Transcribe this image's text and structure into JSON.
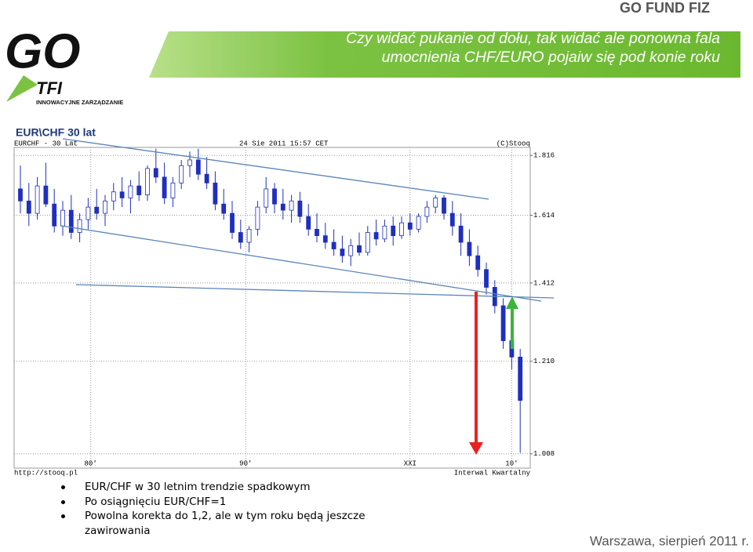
{
  "header": {
    "brand": "GO FUND FIZ",
    "title_line1": "Czy widać pukanie od dołu, tak widać ale ponowna fala",
    "title_line2": "umocnienia CHF/EURO pojaiw się pod konie roku",
    "logo": "GO",
    "logo_sub": "TFI",
    "logo_tagline": "INNOWACYJNE ZARZĄDZANIE"
  },
  "section_label": "EUR\\CHF 30 lat",
  "chart_data": {
    "type": "candlestick",
    "symbol": "EURCHF - 30 Lat",
    "timestamp": "24 Sie 2011 15:57 CET",
    "copyright": "(C)Stooq",
    "source": "http://stooq.pl",
    "interval": "Interwal Kwartalny",
    "log_scale": true,
    "grid": true,
    "up_color": "#ffffff",
    "down_color": "#1f2fbf",
    "open": [
      1.7,
      1.66,
      1.62,
      1.71,
      1.65,
      1.58,
      1.63,
      1.56,
      1.6,
      1.64,
      1.62,
      1.66,
      1.69,
      1.67,
      1.71,
      1.68,
      1.77,
      1.74,
      1.67,
      1.72,
      1.78,
      1.8,
      1.75,
      1.72,
      1.65,
      1.62,
      1.56,
      1.53,
      1.57,
      1.64,
      1.7,
      1.65,
      1.63,
      1.66,
      1.61,
      1.57,
      1.55,
      1.53,
      1.51,
      1.49,
      1.52,
      1.5,
      1.56,
      1.54,
      1.58,
      1.55,
      1.59,
      1.57,
      1.61,
      1.64,
      1.67,
      1.62,
      1.58,
      1.53,
      1.49,
      1.45,
      1.4,
      1.35,
      1.26,
      1.22
    ],
    "high": [
      1.78,
      1.72,
      1.74,
      1.79,
      1.7,
      1.66,
      1.68,
      1.62,
      1.67,
      1.7,
      1.68,
      1.72,
      1.74,
      1.73,
      1.76,
      1.78,
      1.84,
      1.79,
      1.74,
      1.8,
      1.83,
      1.84,
      1.81,
      1.76,
      1.7,
      1.66,
      1.6,
      1.58,
      1.66,
      1.74,
      1.72,
      1.7,
      1.68,
      1.69,
      1.65,
      1.62,
      1.59,
      1.57,
      1.55,
      1.54,
      1.56,
      1.58,
      1.6,
      1.6,
      1.61,
      1.61,
      1.62,
      1.62,
      1.66,
      1.68,
      1.68,
      1.66,
      1.62,
      1.57,
      1.52,
      1.47,
      1.42,
      1.37,
      1.33,
      1.24
    ],
    "low": [
      1.62,
      1.58,
      1.6,
      1.64,
      1.56,
      1.55,
      1.54,
      1.53,
      1.57,
      1.6,
      1.58,
      1.63,
      1.64,
      1.62,
      1.66,
      1.66,
      1.72,
      1.65,
      1.64,
      1.7,
      1.74,
      1.73,
      1.7,
      1.63,
      1.6,
      1.54,
      1.51,
      1.5,
      1.55,
      1.62,
      1.62,
      1.6,
      1.59,
      1.59,
      1.55,
      1.53,
      1.51,
      1.49,
      1.47,
      1.46,
      1.49,
      1.49,
      1.52,
      1.53,
      1.52,
      1.54,
      1.55,
      1.56,
      1.59,
      1.62,
      1.6,
      1.55,
      1.49,
      1.46,
      1.43,
      1.38,
      1.33,
      1.24,
      1.19,
      1.01
    ],
    "close": [
      1.66,
      1.62,
      1.71,
      1.65,
      1.58,
      1.63,
      1.56,
      1.6,
      1.64,
      1.62,
      1.66,
      1.69,
      1.67,
      1.71,
      1.68,
      1.77,
      1.74,
      1.67,
      1.72,
      1.78,
      1.8,
      1.75,
      1.72,
      1.65,
      1.62,
      1.56,
      1.53,
      1.57,
      1.64,
      1.7,
      1.65,
      1.63,
      1.66,
      1.61,
      1.57,
      1.55,
      1.53,
      1.51,
      1.49,
      1.52,
      1.5,
      1.56,
      1.54,
      1.58,
      1.55,
      1.59,
      1.57,
      1.61,
      1.64,
      1.67,
      1.62,
      1.58,
      1.53,
      1.49,
      1.45,
      1.4,
      1.35,
      1.26,
      1.22,
      1.12
    ],
    "xticks": [
      {
        "value": 8.3,
        "label": "80'"
      },
      {
        "value": 26.6,
        "label": "90'"
      },
      {
        "value": 46,
        "label": "XXI"
      },
      {
        "value": 58,
        "label": "10'"
      }
    ],
    "ylim": [
      0.98,
      1.845
    ],
    "yticks": [
      1.816,
      1.614,
      1.412,
      {
        "value": 1.21,
        "label": "1.210"
      },
      1.008
    ]
  },
  "bullets": [
    "EUR/CHF w 30 letnim trendzie spadkowym",
    "Po osiągnięciu EUR/CHF=1",
    "Powolna korekta do 1,2, ale w tym roku będą jeszcze zawirowania"
  ],
  "footer": "Warszawa, sierpień 2011 r."
}
